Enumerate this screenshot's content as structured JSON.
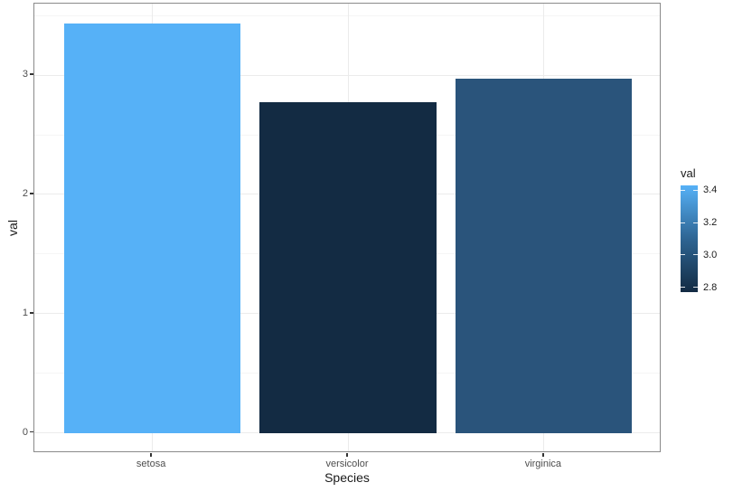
{
  "chart_data": {
    "type": "bar",
    "title": "",
    "xlabel": "Species",
    "ylabel": "val",
    "categories": [
      "setosa",
      "versicolor",
      "virginica"
    ],
    "values": [
      3.43,
      2.77,
      2.97
    ],
    "bar_colors": [
      "#56B1F7",
      "#132B43",
      "#2A547B"
    ],
    "ylim": [
      -0.17,
      3.6
    ],
    "y_major_ticks": [
      0,
      1,
      2,
      3
    ],
    "y_major_labels": [
      "0",
      "1",
      "2",
      "3"
    ],
    "y_minor_ticks": [
      0.5,
      1.5,
      2.5,
      3.5
    ],
    "grid": true,
    "legend": {
      "title": "val",
      "position": "right",
      "tick_labels": [
        "3.4",
        "3.2",
        "3.0",
        "2.8"
      ],
      "tick_values": [
        3.4,
        3.2,
        3.0,
        2.8
      ],
      "domain": [
        2.77,
        3.43
      ],
      "color_low": "#132B43",
      "color_mid": "#2E6593",
      "color_high": "#56B1F7"
    },
    "colors": {
      "grid_major": "#EBEBEB",
      "grid_minor": "#F5F5F5",
      "panel_border": "#8A8A8A",
      "tick_mark": "#333333",
      "tick_label": "#4D4D4D",
      "axis_title": "#1A1A1A",
      "background": "#FFFFFF"
    }
  }
}
